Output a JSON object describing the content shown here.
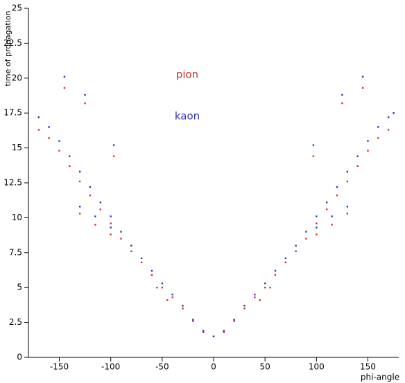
{
  "chart_data": {
    "type": "scatter",
    "xlabel": "phi-angle",
    "ylabel": "time of propagation",
    "xlim": [
      -180,
      180
    ],
    "xticks": [
      -150,
      -100,
      -50,
      0,
      50,
      100,
      150
    ],
    "ylim": [
      0,
      25
    ],
    "yticks": [
      0,
      2.5,
      5,
      7.5,
      10,
      12.5,
      15,
      17.5,
      20,
      22.5,
      25
    ],
    "series": [
      {
        "name": "pion",
        "color": "#d03030",
        "x": [
          -170,
          -160,
          -150,
          -140,
          -130,
          -120,
          -110,
          -100,
          -90,
          -80,
          -70,
          -60,
          -50,
          -40,
          -30,
          -20,
          -10,
          0,
          10,
          20,
          30,
          40,
          50,
          60,
          70,
          80,
          90,
          100,
          110,
          120,
          130,
          140,
          150,
          160,
          170,
          -55,
          -45,
          45,
          55,
          -130,
          -115,
          -100,
          100,
          115,
          130,
          -145,
          -125,
          -97,
          97,
          125,
          145
        ],
        "values": [
          16.3,
          15.7,
          14.8,
          13.7,
          12.6,
          11.6,
          10.6,
          9.6,
          8.5,
          7.6,
          6.8,
          5.9,
          5.0,
          4.3,
          3.5,
          2.6,
          1.8,
          1.5,
          1.8,
          2.6,
          3.5,
          4.3,
          5.0,
          5.9,
          6.8,
          7.6,
          8.5,
          9.6,
          10.6,
          11.6,
          12.6,
          13.7,
          14.8,
          15.7,
          16.3,
          5.0,
          4.1,
          4.1,
          5.0,
          10.3,
          9.5,
          8.8,
          8.8,
          9.5,
          10.3,
          19.3,
          18.2,
          14.4,
          14.4,
          18.2,
          19.3
        ]
      },
      {
        "name": "kaon",
        "color": "#3030c8",
        "x": [
          -170,
          -160,
          -150,
          -140,
          -130,
          -120,
          -110,
          -100,
          -90,
          -80,
          -70,
          -60,
          -50,
          -40,
          -30,
          -20,
          -10,
          0,
          10,
          20,
          30,
          40,
          50,
          60,
          70,
          80,
          90,
          100,
          110,
          120,
          130,
          140,
          150,
          160,
          170,
          -130,
          -115,
          -100,
          100,
          115,
          130,
          -145,
          -125,
          -97,
          97,
          125,
          145,
          175
        ],
        "values": [
          17.2,
          16.5,
          15.5,
          14.4,
          13.3,
          12.2,
          11.1,
          10.1,
          9.0,
          8.0,
          7.1,
          6.2,
          5.3,
          4.5,
          3.7,
          2.7,
          1.9,
          1.5,
          1.9,
          2.7,
          3.7,
          4.5,
          5.3,
          6.2,
          7.1,
          8.0,
          9.0,
          10.1,
          11.1,
          12.2,
          13.3,
          14.4,
          15.5,
          16.5,
          17.2,
          10.8,
          10.1,
          9.3,
          9.3,
          10.1,
          10.8,
          20.1,
          18.8,
          15.2,
          15.2,
          18.8,
          20.1,
          17.5
        ]
      }
    ]
  }
}
